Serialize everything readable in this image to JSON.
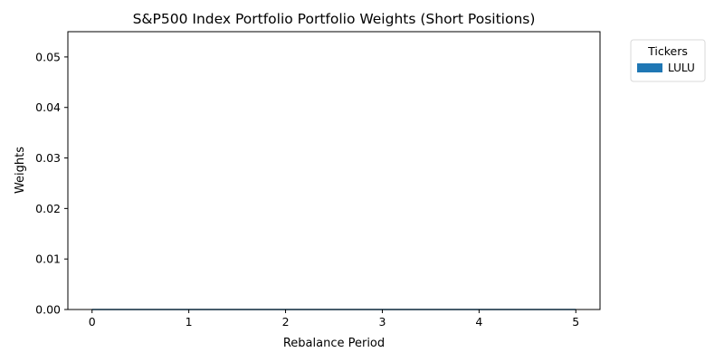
{
  "chart_data": {
    "type": "area",
    "title": "S&P500 Index Portfolio Portfolio Weights (Short Positions)",
    "xlabel": "Rebalance Period",
    "ylabel": "Weights",
    "x": [
      0,
      1,
      2,
      3,
      4,
      5
    ],
    "xticks": [
      0,
      1,
      2,
      3,
      4,
      5
    ],
    "yticks": [
      "0.00",
      "0.01",
      "0.02",
      "0.03",
      "0.04",
      "0.05"
    ],
    "xlim": [
      -0.25,
      5.25
    ],
    "ylim": [
      0,
      0.055
    ],
    "series": [
      {
        "name": "LULU",
        "color": "#1f77b4",
        "values": [
          0,
          0,
          0,
          0,
          0,
          0
        ]
      }
    ],
    "legend": {
      "title": "Tickers",
      "placement": "outside-top-right"
    },
    "grid": false
  }
}
